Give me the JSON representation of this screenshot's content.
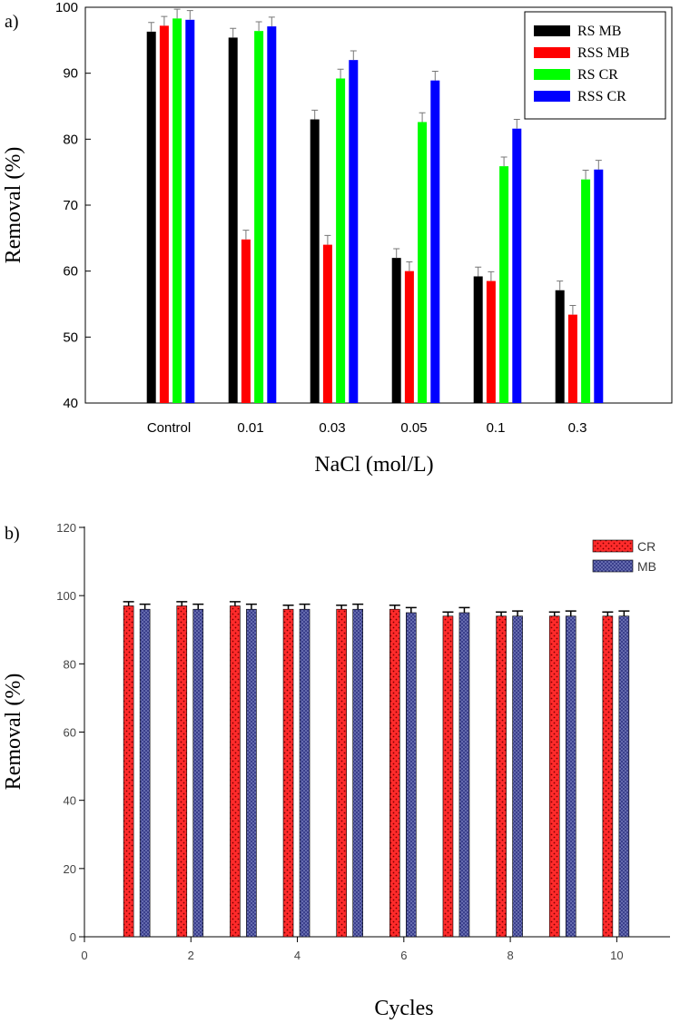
{
  "chart_data": [
    {
      "panel": "a)",
      "type": "bar",
      "xlabel": "NaCl (mol/L)",
      "ylabel": "Removal (%)",
      "ylim": [
        40,
        100
      ],
      "yticks": [
        "40",
        "50",
        "60",
        "70",
        "80",
        "90",
        "100"
      ],
      "categories": [
        "Control",
        "0.01",
        "0.03",
        "0.05",
        "0.1",
        "0.3"
      ],
      "legend_position": "top-right",
      "series": [
        {
          "name": "RS MB",
          "color": "#000000",
          "values": [
            96.3,
            95.4,
            83.0,
            62.0,
            59.2,
            57.1
          ],
          "errors": [
            1.4,
            1.4,
            1.4,
            1.4,
            1.4,
            1.4
          ]
        },
        {
          "name": "RSS MB",
          "color": "#ff0000",
          "values": [
            97.2,
            64.8,
            64.0,
            60.0,
            58.5,
            53.4
          ],
          "errors": [
            1.4,
            1.4,
            1.4,
            1.4,
            1.4,
            1.4
          ]
        },
        {
          "name": "RS CR",
          "color": "#00ff00",
          "values": [
            98.3,
            96.4,
            89.2,
            82.6,
            75.9,
            73.9
          ],
          "errors": [
            1.4,
            1.4,
            1.4,
            1.4,
            1.4,
            1.4
          ]
        },
        {
          "name": "RSS CR",
          "color": "#0000ff",
          "values": [
            98.1,
            97.1,
            92.0,
            88.9,
            81.6,
            75.4
          ],
          "errors": [
            1.4,
            1.4,
            1.4,
            1.4,
            1.4,
            1.4
          ]
        }
      ]
    },
    {
      "panel": "b)",
      "type": "bar",
      "xlabel": "Cycles",
      "ylabel": "Removal (%)",
      "ylim": [
        0,
        120
      ],
      "xlim": [
        0,
        11
      ],
      "yticks": [
        "0",
        "20",
        "40",
        "60",
        "80",
        "100",
        "120"
      ],
      "xticks": [
        "0",
        "2",
        "4",
        "6",
        "8",
        "10"
      ],
      "x": [
        1,
        2,
        3,
        4,
        5,
        6,
        7,
        8,
        9,
        10
      ],
      "legend_position": "top-right",
      "series": [
        {
          "name": "CR",
          "color": "#ff2b2b",
          "values": [
            97,
            97,
            97,
            96,
            96,
            96,
            94,
            94,
            94,
            94
          ],
          "errors": [
            1.2,
            1.2,
            1.2,
            1.2,
            1.2,
            1.2,
            1.2,
            1.2,
            1.2,
            1.2
          ]
        },
        {
          "name": "MB",
          "color": "#3a3f8c",
          "values": [
            96,
            96,
            96,
            96,
            96,
            95,
            95,
            94,
            94,
            94
          ],
          "errors": [
            1.5,
            1.5,
            1.5,
            1.5,
            1.5,
            1.5,
            1.5,
            1.5,
            1.5,
            1.5
          ]
        }
      ]
    }
  ]
}
